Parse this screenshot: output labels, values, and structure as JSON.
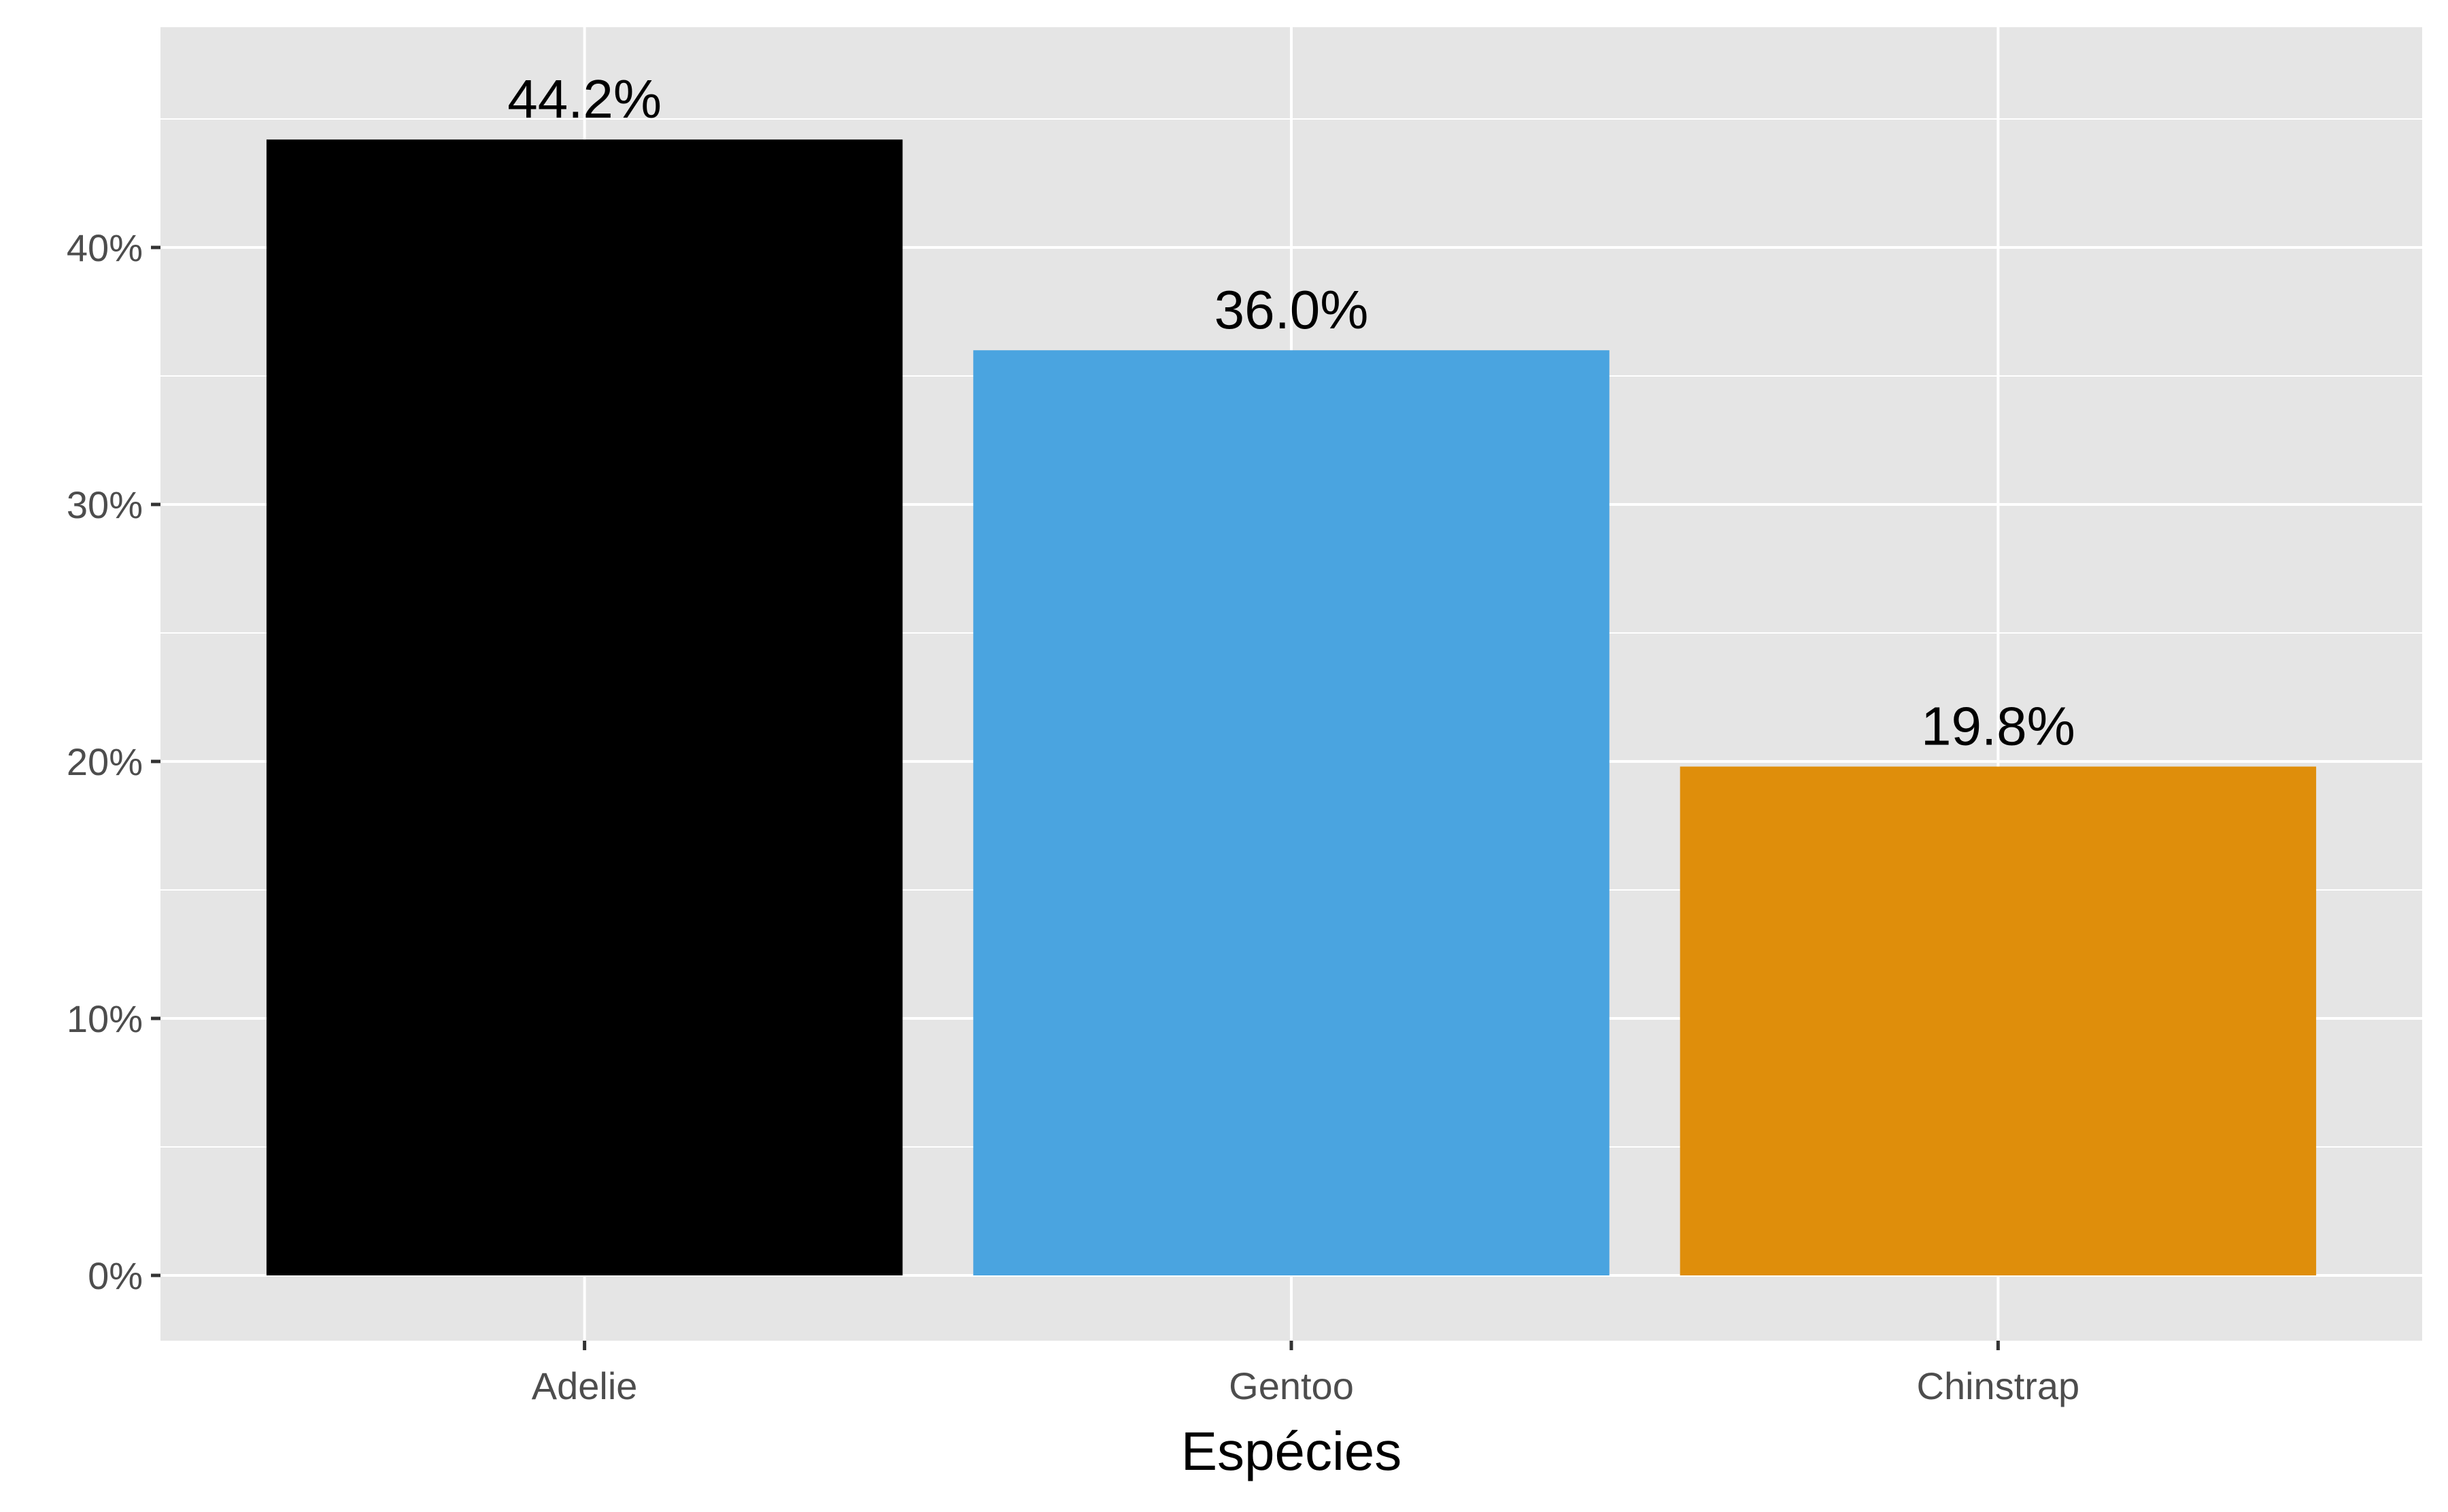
{
  "chart_data": {
    "type": "bar",
    "categories": [
      "Adelie",
      "Gentoo",
      "Chinstrap"
    ],
    "values": [
      44.2,
      36.0,
      19.8
    ],
    "data_labels": [
      "44.2%",
      "36.0%",
      "19.8%"
    ],
    "bar_colors": [
      "#000000",
      "#4aa4e0",
      "#df8e0b"
    ],
    "xlabel": "Espécies",
    "ylabel": "",
    "ylim": [
      0,
      48
    ],
    "y_ticks": [
      0,
      10,
      20,
      30,
      40
    ],
    "y_tick_labels": [
      "0%",
      "10%",
      "20%",
      "30%",
      "40%"
    ],
    "grid": true,
    "legend": "none",
    "panel_background": "#e5e5e5",
    "grid_color": "#ffffff"
  }
}
